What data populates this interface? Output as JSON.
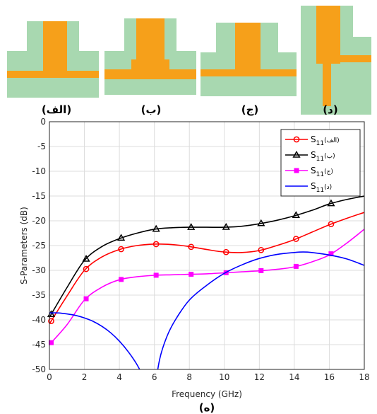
{
  "structures": {
    "background_color": "#a8d8b0",
    "metal_color": "#f6a01a",
    "items": [
      {
        "caption": "(الف)"
      },
      {
        "caption": "(ب)"
      },
      {
        "caption": "(ج)"
      },
      {
        "caption": "(د)"
      }
    ]
  },
  "figure_caption": "(ه)",
  "chart_data": {
    "type": "line",
    "title": "",
    "xlabel": "Frequency (GHz)",
    "ylabel": "S-Parameters (dB)",
    "xlim": [
      0,
      18
    ],
    "ylim": [
      -50,
      0
    ],
    "xticks": [
      0,
      2,
      4,
      6,
      8,
      10,
      12,
      14,
      16,
      18
    ],
    "yticks": [
      0,
      -5,
      -10,
      -15,
      -20,
      -25,
      -30,
      -35,
      -40,
      -45,
      -50
    ],
    "grid": true,
    "legend_position": "top-right",
    "series": [
      {
        "name": "S11(الف)",
        "color": "#ff0000",
        "marker": "circle",
        "x": [
          0,
          1,
          2,
          3,
          4,
          5,
          6,
          7,
          8,
          9,
          10,
          11,
          12,
          13,
          14,
          15,
          16,
          17,
          18
        ],
        "y": [
          -40.8,
          -35.2,
          -30.0,
          -27.3,
          -25.8,
          -25.0,
          -24.7,
          -24.8,
          -25.2,
          -25.8,
          -26.3,
          -26.4,
          -26.0,
          -25.0,
          -23.8,
          -22.3,
          -20.8,
          -19.5,
          -18.3
        ],
        "marker_x": [
          0.1,
          2.1,
          4.1,
          6.1,
          8.1,
          10.1,
          12.1,
          14.1,
          16.1
        ]
      },
      {
        "name": "S11(ب)",
        "color": "#000000",
        "marker": "triangle",
        "x": [
          0,
          1,
          2,
          3,
          4,
          5,
          6,
          7,
          8,
          9,
          10,
          11,
          12,
          13,
          14,
          15,
          16,
          17,
          18
        ],
        "y": [
          -39.5,
          -33.5,
          -28.0,
          -25.2,
          -23.6,
          -22.5,
          -21.7,
          -21.4,
          -21.3,
          -21.3,
          -21.3,
          -21.1,
          -20.6,
          -19.9,
          -19.0,
          -17.9,
          -16.6,
          -15.7,
          -15.0
        ],
        "marker_x": [
          0.1,
          2.1,
          4.1,
          6.1,
          8.1,
          10.1,
          12.1,
          14.1,
          16.1
        ]
      },
      {
        "name": "S11(ج)",
        "color": "#ff00ff",
        "marker": "square",
        "x": [
          0,
          1,
          2,
          3,
          4,
          5,
          6,
          7,
          8,
          9,
          10,
          11,
          12,
          13,
          14,
          15,
          16,
          17,
          18
        ],
        "y": [
          -45.0,
          -41.0,
          -36.0,
          -33.4,
          -31.9,
          -31.3,
          -31.0,
          -30.9,
          -30.8,
          -30.7,
          -30.5,
          -30.3,
          -30.1,
          -29.8,
          -29.3,
          -28.3,
          -26.9,
          -24.5,
          -21.7
        ],
        "marker_x": [
          0.1,
          2.1,
          4.1,
          6.1,
          8.1,
          10.1,
          12.1,
          14.1,
          16.1
        ]
      },
      {
        "name": "S11(د)",
        "color": "#0000ff",
        "marker": "none",
        "x": [
          0,
          0.5,
          1,
          1.5,
          2,
          2.5,
          3,
          3.5,
          4,
          4.5,
          5,
          5.5,
          5.8,
          5.9
        ],
        "y": [
          -38.6,
          -38.6,
          -38.8,
          -39.1,
          -39.6,
          -40.3,
          -41.3,
          -42.6,
          -44.3,
          -46.4,
          -49.0,
          -52.5,
          -56.0,
          -60.0
        ],
        "x2": [
          5.9,
          6.0,
          6.3,
          6.7,
          7.2,
          8.0,
          9.0,
          10.0,
          11.0,
          12.0,
          13.0,
          14.0,
          14.5,
          15.0,
          16.0,
          17.0,
          18.0
        ],
        "y2": [
          -60.0,
          -55.0,
          -48.0,
          -43.5,
          -40.0,
          -36.0,
          -33.0,
          -30.6,
          -28.9,
          -27.6,
          -26.8,
          -26.4,
          -26.3,
          -26.4,
          -26.9,
          -27.7,
          -29.0
        ]
      }
    ],
    "legend": [
      {
        "label": "S",
        "sub": "11",
        "suffix": "(الف)"
      },
      {
        "label": "S",
        "sub": "11",
        "suffix": "(ب)"
      },
      {
        "label": "S",
        "sub": "11",
        "suffix": "(ج)"
      },
      {
        "label": "S",
        "sub": "11",
        "suffix": "(د)"
      }
    ]
  }
}
